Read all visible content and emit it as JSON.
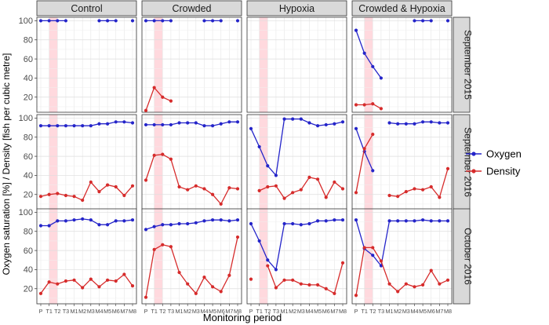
{
  "chart_data": {
    "type": "line",
    "layout": "facet-grid",
    "xlabel": "Monitoring period",
    "ylabel": "Oxygen saturation [%] / Density [fish per cubic metre]",
    "categories": [
      "P",
      "T1",
      "T2",
      "T3",
      "M1",
      "M2",
      "M3",
      "M4",
      "M5",
      "M6",
      "M7",
      "M8"
    ],
    "shaded_periods": [
      "T1",
      "T2"
    ],
    "shade_color": "#ffd9de",
    "ylim": [
      5,
      102
    ],
    "yticks": [
      20,
      40,
      60,
      80,
      100
    ],
    "grid": true,
    "columns": [
      "Control",
      "Crowded",
      "Hypoxia",
      "Crowded & Hypoxia"
    ],
    "rows": [
      "September 2015",
      "September 2016",
      "October 2016"
    ],
    "legend": {
      "position": "right",
      "entries": [
        {
          "name": "Oxygen",
          "color": "#2424c9"
        },
        {
          "name": "Density",
          "color": "#d62b2b"
        }
      ]
    },
    "panels": [
      [
        {
          "oxygen": [
            100,
            100,
            100,
            100,
            null,
            null,
            null,
            null,
            null,
            null,
            null,
            null
          ],
          "density": [
            null,
            null,
            null,
            null,
            null,
            null,
            null,
            null,
            null,
            null,
            null,
            null
          ],
          "extra_oxygen": [
            null,
            null,
            null,
            null,
            null,
            null,
            null,
            100,
            100,
            100,
            null,
            100
          ]
        },
        {
          "oxygen": [
            100,
            100,
            100,
            100,
            null,
            null,
            null,
            null,
            null,
            null,
            null,
            null
          ],
          "density": [
            6,
            30,
            20,
            16,
            null,
            null,
            null,
            null,
            null,
            null,
            null,
            null
          ],
          "extra_oxygen": [
            null,
            null,
            null,
            null,
            null,
            null,
            null,
            100,
            100,
            100,
            null,
            100
          ]
        },
        {
          "oxygen": [
            null,
            null,
            null,
            null,
            null,
            null,
            null,
            null,
            null,
            null,
            null,
            null
          ],
          "density": [
            null,
            null,
            null,
            null,
            null,
            null,
            null,
            null,
            null,
            null,
            null,
            null
          ]
        },
        {
          "oxygen": [
            90,
            66,
            52,
            40,
            null,
            null,
            null,
            null,
            null,
            null,
            null,
            null
          ],
          "density": [
            12,
            12,
            13,
            8,
            null,
            null,
            null,
            null,
            null,
            null,
            null,
            null
          ],
          "extra_oxygen": [
            null,
            null,
            null,
            null,
            null,
            null,
            null,
            100,
            100,
            100,
            null,
            100
          ]
        }
      ],
      [
        {
          "oxygen": [
            92,
            92,
            92,
            92,
            92,
            92,
            92,
            94,
            94,
            96,
            96,
            95
          ],
          "density": [
            18,
            20,
            21,
            19,
            18,
            14,
            33,
            23,
            30,
            28,
            19,
            29
          ]
        },
        {
          "oxygen": [
            93,
            93,
            93,
            93,
            95,
            95,
            95,
            92,
            92,
            94,
            96,
            96
          ],
          "density": [
            35,
            61,
            62,
            57,
            28,
            25,
            29,
            26,
            20,
            10,
            27,
            26
          ]
        },
        {
          "oxygen": [
            89,
            70,
            50,
            40,
            99,
            99,
            99,
            95,
            92,
            93,
            94,
            96
          ],
          "density": [
            null,
            24,
            28,
            29,
            16,
            22,
            25,
            38,
            36,
            17,
            33,
            26
          ]
        },
        {
          "oxygen": [
            89,
            65,
            45,
            null,
            95,
            94,
            94,
            94,
            96,
            96,
            95,
            95
          ],
          "density": [
            22,
            68,
            83,
            null,
            19,
            18,
            23,
            26,
            25,
            28,
            17,
            47
          ]
        }
      ],
      [
        {
          "oxygen": [
            86,
            86,
            91,
            91,
            92,
            93,
            92,
            87,
            87,
            91,
            91,
            92
          ],
          "density": [
            15,
            27,
            25,
            28,
            29,
            21,
            30,
            22,
            29,
            28,
            35,
            23
          ]
        },
        {
          "oxygen": [
            82,
            85,
            87,
            87,
            88,
            88,
            89,
            91,
            92,
            92,
            91,
            92
          ],
          "density": [
            11,
            61,
            66,
            64,
            37,
            25,
            15,
            32,
            22,
            17,
            34,
            74
          ]
        },
        {
          "oxygen": [
            88,
            70,
            50,
            40,
            88,
            88,
            87,
            88,
            91,
            91,
            92,
            92
          ],
          "density": [
            30,
            null,
            44,
            21,
            29,
            29,
            25,
            24,
            24,
            20,
            15,
            47
          ]
        },
        {
          "oxygen": [
            92,
            62,
            55,
            44,
            91,
            91,
            91,
            91,
            92,
            91,
            91,
            91
          ],
          "density": [
            13,
            63,
            63,
            49,
            25,
            17,
            25,
            22,
            24,
            39,
            25,
            29
          ]
        }
      ]
    ]
  }
}
